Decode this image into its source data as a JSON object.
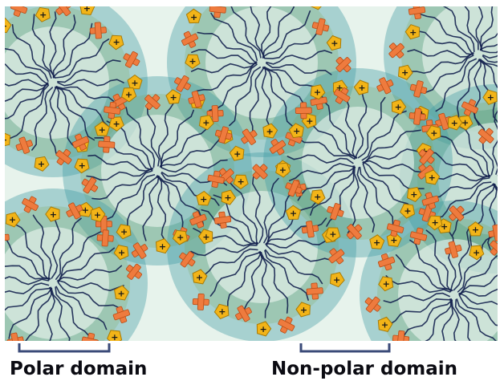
{
  "labels": {
    "polar": "Polar domain",
    "nonpolar": "Non-polar domain"
  },
  "marks": {
    "cation": "+",
    "anion": "×"
  },
  "colors": {
    "background": "#e7f3ec",
    "shell": "#3e9aa2",
    "shell_inner": "#7aa34f",
    "cation": "#f2b418",
    "cation_edge": "#a77a06",
    "anion": "#ee7b3e",
    "anion_edge": "#b94d16",
    "tail": "#14214f",
    "text": "#0b0b12"
  },
  "icons": {
    "cation_shape": "pentagon",
    "anion_shape": "cross",
    "tail_shape": "wavy-line"
  }
}
